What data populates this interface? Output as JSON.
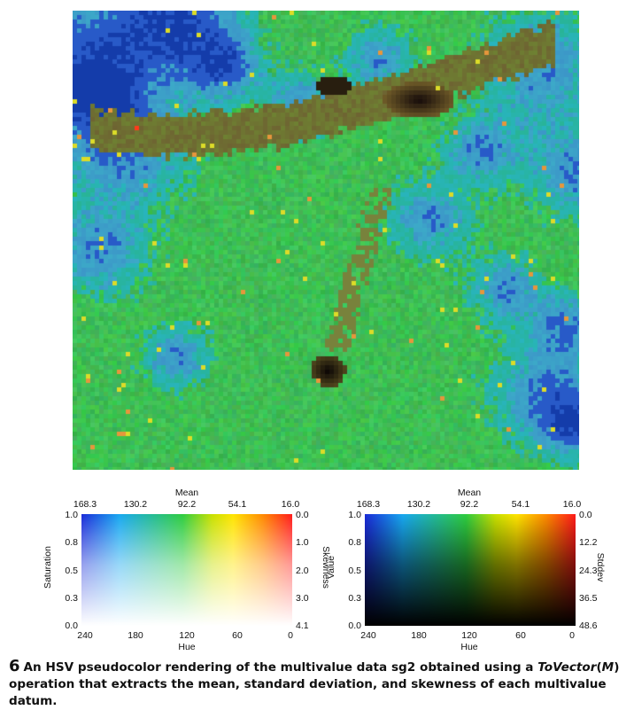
{
  "figure": {
    "number": "6",
    "caption_before": "An HSV pseudocolor rendering of the multivalue data sg2 obtained using a ",
    "caption_emph": "ToVector",
    "caption_paren_open": "(",
    "caption_emph2": "M",
    "caption_after": ") operation that extracts the mean, standard deviation, and skewness of each multivalue datum."
  },
  "legend_left": {
    "top_title": "Mean",
    "top_ticks": [
      "168.3",
      "130.2",
      "92.2",
      "54.1",
      "16.0"
    ],
    "left_ticks": [
      "1.0",
      "0.8",
      "0.5",
      "0.3",
      "0.0"
    ],
    "right_ticks": [
      "0.0",
      "1.0",
      "2.0",
      "3.0",
      "4.1"
    ],
    "bottom_ticks": [
      "240",
      "180",
      "120",
      "60",
      "0"
    ],
    "bottom_title": "Hue",
    "left_title": "Saturation",
    "right_title": "Skewness"
  },
  "legend_right": {
    "top_title": "Mean",
    "top_ticks": [
      "168.3",
      "130.2",
      "92.2",
      "54.1",
      "16.0"
    ],
    "left_ticks": [
      "1.0",
      "0.8",
      "0.5",
      "0.3",
      "0.0"
    ],
    "right_ticks": [
      "0.0",
      "12.2",
      "24.3",
      "36.5",
      "48.6"
    ],
    "bottom_ticks": [
      "240",
      "180",
      "120",
      "60",
      "0"
    ],
    "bottom_title": "Hue",
    "left_title": "Value",
    "right_title": "Stddev"
  },
  "colors": {
    "map_base": "#2fb84a",
    "ridge": "#6b5a2e",
    "water": "#2a6fc0"
  }
}
